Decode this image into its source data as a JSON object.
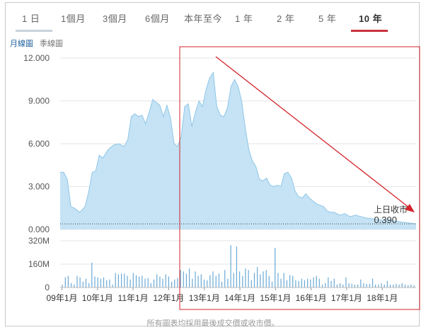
{
  "tabs": [
    "1 日",
    "1個月",
    "3個月",
    "6個月",
    "本年至今",
    "1 年",
    "2 年",
    "5 年",
    "10 年"
  ],
  "active_tab_index": 8,
  "subtabs": [
    "月線圖",
    "季線圖"
  ],
  "active_subtab_index": 0,
  "footer_note": "所有圖表均採用最後成交價或收市價。",
  "colors": {
    "area_fill": "#c5e3f5",
    "area_line": "#8fc6e8",
    "volume_bar": "#6aa9d6",
    "annotation_red": "#d2232a",
    "active_tab_red": "#c8323c"
  },
  "chart_data": [
    {
      "type": "area",
      "ylim": [
        0,
        12
      ],
      "y_ticks": [
        "12.000",
        "9.000",
        "6.000",
        "3.000",
        "0.000"
      ],
      "y_tick_values": [
        12,
        9,
        6,
        3,
        0
      ],
      "x_tick_labels": [
        "09年1月",
        "10年1月",
        "11年1月",
        "12年1月",
        "13年1月",
        "14年1月",
        "15年1月",
        "16年1月",
        "17年1月",
        "18年1月"
      ],
      "x_tick_values": [
        2009,
        2010,
        2011,
        2012,
        2013,
        2014,
        2015,
        2016,
        2017,
        2018
      ],
      "xlim": [
        2008.95,
        2018.95
      ],
      "grid": true,
      "last_close_label": "上日收市",
      "last_close_value": "0.390",
      "last_close_numeric": 0.39,
      "points": [
        [
          2008.95,
          4.0
        ],
        [
          2009.05,
          4.0
        ],
        [
          2009.15,
          3.5
        ],
        [
          2009.25,
          1.6
        ],
        [
          2009.35,
          1.5
        ],
        [
          2009.5,
          1.2
        ],
        [
          2009.65,
          1.6
        ],
        [
          2009.75,
          2.6
        ],
        [
          2009.85,
          4.0
        ],
        [
          2009.95,
          4.1
        ],
        [
          2010.05,
          5.2
        ],
        [
          2010.15,
          5.0
        ],
        [
          2010.3,
          5.6
        ],
        [
          2010.45,
          5.9
        ],
        [
          2010.6,
          6.0
        ],
        [
          2010.75,
          5.8
        ],
        [
          2010.85,
          6.3
        ],
        [
          2010.95,
          7.9
        ],
        [
          2011.05,
          8.1
        ],
        [
          2011.15,
          7.9
        ],
        [
          2011.25,
          8.0
        ],
        [
          2011.35,
          7.4
        ],
        [
          2011.45,
          8.2
        ],
        [
          2011.55,
          9.1
        ],
        [
          2011.65,
          8.9
        ],
        [
          2011.75,
          8.7
        ],
        [
          2011.85,
          7.9
        ],
        [
          2011.95,
          8.7
        ],
        [
          2012.05,
          7.8
        ],
        [
          2012.15,
          6.0
        ],
        [
          2012.25,
          5.8
        ],
        [
          2012.35,
          6.5
        ],
        [
          2012.45,
          8.6
        ],
        [
          2012.55,
          8.8
        ],
        [
          2012.65,
          7.2
        ],
        [
          2012.75,
          8.2
        ],
        [
          2012.85,
          9.0
        ],
        [
          2012.95,
          8.6
        ],
        [
          2013.05,
          9.8
        ],
        [
          2013.15,
          10.6
        ],
        [
          2013.25,
          11.0
        ],
        [
          2013.35,
          8.6
        ],
        [
          2013.45,
          8.0
        ],
        [
          2013.55,
          7.9
        ],
        [
          2013.65,
          8.5
        ],
        [
          2013.75,
          10.0
        ],
        [
          2013.85,
          10.5
        ],
        [
          2013.95,
          10.0
        ],
        [
          2014.05,
          9.0
        ],
        [
          2014.15,
          7.1
        ],
        [
          2014.25,
          5.6
        ],
        [
          2014.35,
          4.8
        ],
        [
          2014.45,
          4.4
        ],
        [
          2014.55,
          3.5
        ],
        [
          2014.65,
          3.4
        ],
        [
          2014.75,
          3.6
        ],
        [
          2014.85,
          3.1
        ],
        [
          2014.95,
          3.0
        ],
        [
          2015.05,
          3.1
        ],
        [
          2015.15,
          3.0
        ],
        [
          2015.25,
          3.9
        ],
        [
          2015.35,
          4.0
        ],
        [
          2015.45,
          3.6
        ],
        [
          2015.55,
          2.7
        ],
        [
          2015.65,
          2.3
        ],
        [
          2015.75,
          2.2
        ],
        [
          2015.85,
          2.5
        ],
        [
          2015.95,
          2.2
        ],
        [
          2016.05,
          2.0
        ],
        [
          2016.15,
          1.8
        ],
        [
          2016.25,
          1.7
        ],
        [
          2016.35,
          1.6
        ],
        [
          2016.45,
          1.3
        ],
        [
          2016.55,
          1.2
        ],
        [
          2016.65,
          1.2
        ],
        [
          2016.8,
          1.0
        ],
        [
          2016.95,
          1.1
        ],
        [
          2017.1,
          0.9
        ],
        [
          2017.25,
          1.0
        ],
        [
          2017.4,
          0.9
        ],
        [
          2017.55,
          0.8
        ],
        [
          2017.7,
          0.75
        ],
        [
          2017.85,
          0.7
        ],
        [
          2018.0,
          0.65
        ],
        [
          2018.15,
          0.7
        ],
        [
          2018.3,
          0.6
        ],
        [
          2018.45,
          0.55
        ],
        [
          2018.6,
          0.5
        ],
        [
          2018.75,
          0.45
        ],
        [
          2018.95,
          0.39
        ]
      ]
    },
    {
      "type": "bar",
      "ylim": [
        0,
        320
      ],
      "y_ticks": [
        "320M",
        "160M",
        "0"
      ],
      "y_tick_values": [
        320,
        160,
        0
      ],
      "xlim": [
        2008.95,
        2018.95
      ],
      "values": [
        20,
        70,
        80,
        30,
        20,
        80,
        70,
        40,
        60,
        30,
        170,
        75,
        70,
        60,
        70,
        50,
        55,
        20,
        100,
        90,
        95,
        95,
        80,
        55,
        100,
        85,
        75,
        80,
        60,
        65,
        30,
        55,
        90,
        75,
        60,
        90,
        75,
        40,
        55,
        65,
        120,
        110,
        95,
        130,
        60,
        110,
        80,
        90,
        55,
        50,
        85,
        110,
        80,
        95,
        40,
        120,
        60,
        290,
        100,
        280,
        110,
        80,
        130,
        120,
        50,
        100,
        140,
        90,
        110,
        120,
        80,
        40,
        270,
        100,
        60,
        100,
        50,
        85,
        80,
        50,
        45,
        60,
        50,
        60,
        55,
        70,
        80,
        60,
        20,
        30,
        70,
        45,
        60,
        20,
        30,
        20,
        70,
        30,
        25,
        20,
        20,
        55,
        30,
        25,
        25,
        60,
        20,
        20,
        30,
        20,
        45,
        20,
        20,
        25,
        20,
        30,
        20,
        15,
        20,
        15
      ]
    }
  ]
}
